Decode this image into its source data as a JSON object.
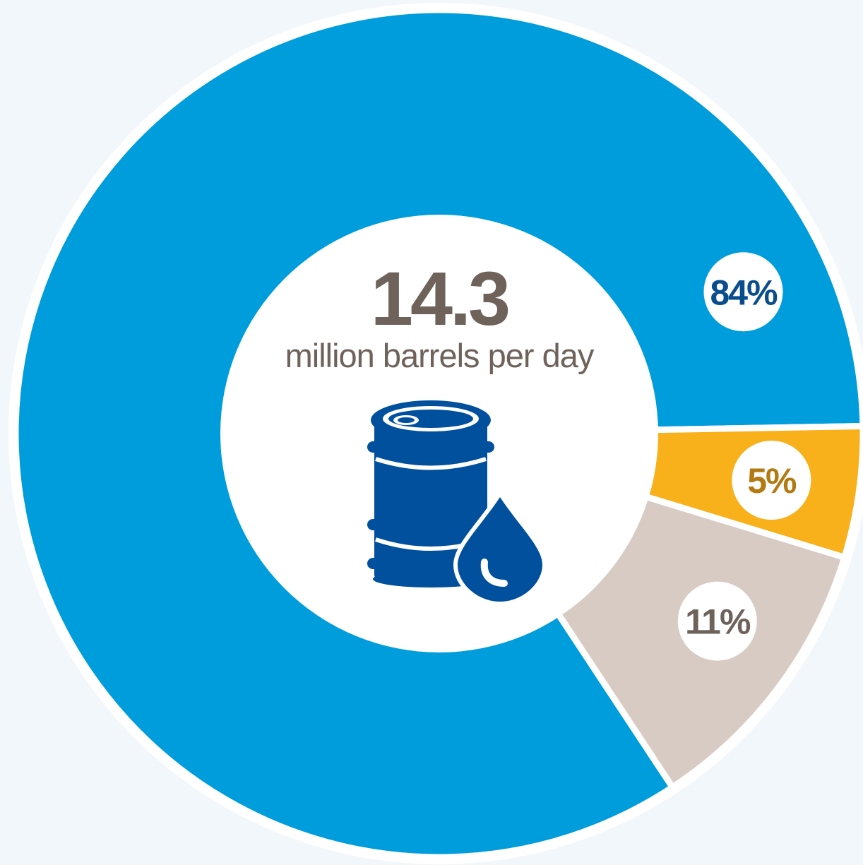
{
  "chart_data": {
    "type": "pie",
    "style": "donut",
    "title": "",
    "center_value": "14.3",
    "center_unit": "million barrels per day",
    "center_icon": "oil-barrel-with-drop-icon",
    "slices": [
      {
        "value": 84,
        "label": "84%",
        "color": "#009ddc",
        "label_color": "#0a4d8c"
      },
      {
        "value": 5,
        "label": "5%",
        "color": "#f8b01b",
        "label_color": "#b37a12"
      },
      {
        "value": 11,
        "label": "11%",
        "color": "#d8cbc4",
        "label_color": "#6e625b"
      }
    ]
  },
  "colors": {
    "background": "#f2f7fb",
    "center_text": "#6e625b",
    "icon": "#00509e",
    "separator": "#ffffff"
  }
}
